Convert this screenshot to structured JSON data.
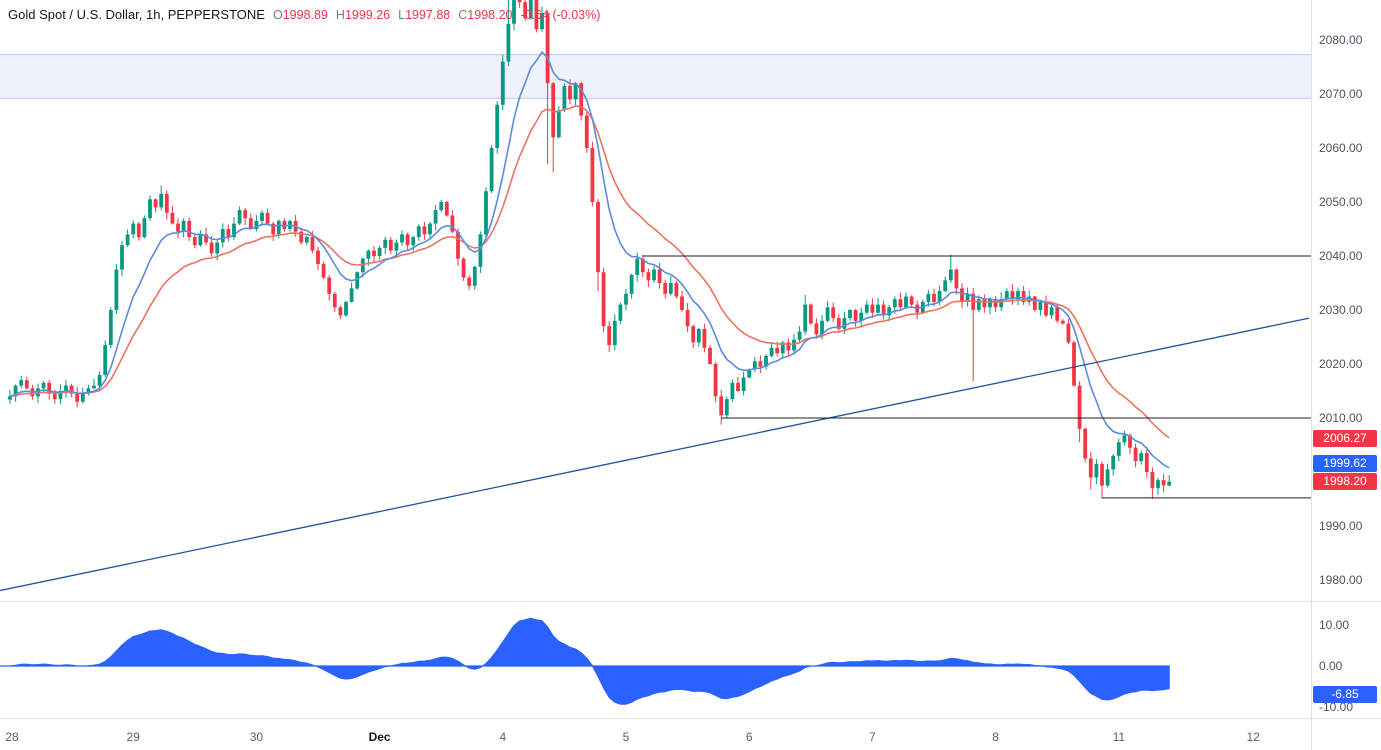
{
  "header": {
    "symbol_title": "Gold Spot / U.S. Dollar, 1h, PEPPERSTONE",
    "ohlc": {
      "o_label": "O",
      "o_value": "1998.89",
      "h_label": "H",
      "h_value": "1999.26",
      "l_label": "L",
      "l_value": "1997.88",
      "c_label": "C",
      "c_value": "1998.20",
      "change_text": "-0.64 (-0.03%)"
    }
  },
  "chart_data": {
    "type": "candlestick",
    "title": "Gold Spot / U.S. Dollar, 1h, PEPPERSTONE",
    "colors": {
      "up": "#089981",
      "down": "#f23645",
      "ma_fast": "#5a8cde",
      "ma_slow": "#ee7262",
      "indicator_fill": "#2962ff",
      "level_line": "#1b1f27",
      "trend_line": "#1e53a0",
      "zone_fill": "#edf2fc",
      "zone_border": "#b7c9ec"
    },
    "y_axis_main": {
      "ticks": [
        2080,
        2070,
        2060,
        2050,
        2040,
        2030,
        2020,
        2010,
        1990,
        1980
      ],
      "visible_range": [
        1976,
        2087.5
      ]
    },
    "y_axis_indicator": {
      "ticks": [
        10,
        0,
        -10
      ],
      "visible_range": [
        -13.5,
        14.5
      ]
    },
    "x_axis": {
      "labels": [
        {
          "text": "28",
          "index": 0
        },
        {
          "text": "29",
          "index": 22
        },
        {
          "text": "30",
          "index": 44
        },
        {
          "text": "Dec",
          "index": 66,
          "bold": true
        },
        {
          "text": "4",
          "index": 88
        },
        {
          "text": "5",
          "index": 110
        },
        {
          "text": "6",
          "index": 132
        },
        {
          "text": "7",
          "index": 154
        },
        {
          "text": "8",
          "index": 176
        },
        {
          "text": "11",
          "index": 198
        },
        {
          "text": "12",
          "index": 222
        }
      ]
    },
    "first_open": 2013.4,
    "closes": [
      2014.0,
      2016.0,
      2017.0,
      2015.5,
      2014.0,
      2015.5,
      2016.5,
      2014.5,
      2013.5,
      2015.0,
      2016.0,
      2014.5,
      2013.0,
      2014.5,
      2015.5,
      2016.0,
      2018.0,
      2023.5,
      2030.0,
      2037.5,
      2042.0,
      2044.0,
      2046.0,
      2043.5,
      2047.0,
      2050.5,
      2049.0,
      2051.5,
      2048.0,
      2046.0,
      2044.5,
      2046.5,
      2043.5,
      2042.0,
      2044.0,
      2042.5,
      2040.5,
      2042.5,
      2045.0,
      2043.5,
      2046.0,
      2048.5,
      2047.0,
      2045.0,
      2046.5,
      2048.0,
      2046.0,
      2044.0,
      2046.5,
      2045.0,
      2046.5,
      2044.5,
      2042.5,
      2043.5,
      2041.0,
      2038.5,
      2036.0,
      2033.0,
      2030.5,
      2029.0,
      2031.5,
      2034.0,
      2037.0,
      2039.5,
      2041.0,
      2040.0,
      2041.5,
      2043.0,
      2041.0,
      2042.5,
      2044.0,
      2042.0,
      2043.5,
      2045.5,
      2044.0,
      2046.0,
      2048.5,
      2050.0,
      2047.5,
      2044.5,
      2039.5,
      2036.0,
      2034.5,
      2038.0,
      2044.0,
      2052.0,
      2060.0,
      2068.0,
      2076.0,
      2083.0,
      2090.0,
      2087.0,
      2084.0,
      2087.5,
      2082.0,
      2085.0,
      2072.0,
      2062.0,
      2067.0,
      2071.5,
      2069.0,
      2072.0,
      2066.0,
      2060.0,
      2050.0,
      2037.0,
      2027.0,
      2023.5,
      2028.0,
      2031.0,
      2033.0,
      2036.5,
      2039.5,
      2037.0,
      2035.5,
      2037.5,
      2035.0,
      2033.0,
      2035.0,
      2032.5,
      2030.0,
      2027.0,
      2024.0,
      2026.5,
      2023.0,
      2020.0,
      2014.0,
      2010.5,
      2013.5,
      2016.5,
      2015.0,
      2017.5,
      2019.0,
      2020.5,
      2019.5,
      2021.5,
      2023.0,
      2022.0,
      2024.0,
      2022.5,
      2024.5,
      2026.0,
      2031.0,
      2027.5,
      2025.5,
      2028.0,
      2030.5,
      2028.5,
      2026.5,
      2028.5,
      2030.0,
      2028.0,
      2029.5,
      2031.0,
      2029.5,
      2031.0,
      2029.0,
      2030.5,
      2032.0,
      2030.5,
      2032.5,
      2031.0,
      2029.5,
      2031.5,
      2033.0,
      2031.5,
      2033.5,
      2035.5,
      2037.5,
      2034.0,
      2031.5,
      2033.0,
      2030.0,
      2032.0,
      2030.5,
      2032.0,
      2030.5,
      2032.0,
      2033.5,
      2032.0,
      2033.5,
      2031.5,
      2032.5,
      2030.0,
      2031.5,
      2029.0,
      2030.5,
      2028.0,
      2027.5,
      2024.0,
      2016.0,
      2008.0,
      2002.5,
      1999.0,
      2001.5,
      1997.5,
      2000.5,
      2003.0,
      2005.5,
      2006.8,
      2004.5,
      2002.0,
      2003.5,
      2000.0,
      1997.0,
      1998.5,
      1997.5,
      1998.2
    ],
    "wick_overrides": {
      "27": {
        "high": 2053
      },
      "89": {
        "high": 2094
      },
      "90": {
        "high": 2098
      },
      "91": {
        "high": 2096
      },
      "93": {
        "high": 2093
      },
      "96": {
        "low": 2057
      },
      "97": {
        "low": 2055.5
      },
      "105": {
        "low": 2033.5
      },
      "112": {
        "high": 2040.6
      },
      "127": {
        "low": 2008.8
      },
      "142": {
        "high": 2032.8
      },
      "168": {
        "high": 2040.3
      },
      "172": {
        "low": 2016.8
      },
      "191": {
        "low": 2005.5
      },
      "193": {
        "low": 1996.8
      },
      "195": {
        "low": 1995.1
      },
      "204": {
        "low": 1995.0
      }
    },
    "moving_averages": [
      {
        "name": "fast",
        "last_value": 1999.62,
        "color": "#2962ff"
      },
      {
        "name": "slow",
        "last_value": 2006.27,
        "color": "#f23645"
      }
    ],
    "indicator": {
      "type": "macd_area",
      "last_value": -6.85,
      "last_value_text": "-6.85"
    },
    "levels": [
      {
        "price": 2040.0,
        "from_index": 113
      },
      {
        "price": 2010.0,
        "from_index": 127
      },
      {
        "price": 1995.2,
        "from_index": 195
      }
    ],
    "trendline": {
      "from_index": -2,
      "from_price": 1978.0,
      "to_index": 232,
      "to_price": 2028.5
    },
    "zone": {
      "top_price": 2077.3,
      "bottom_price": 2069.2
    },
    "price_markers": [
      {
        "value": "2006.27",
        "price": 2006.27,
        "color": "#f23645"
      },
      {
        "value": "1999.62",
        "price": 1999.62,
        "color": "#2962ff"
      },
      {
        "value": "1998.20",
        "price": 1998.2,
        "color": "#f23645"
      }
    ]
  }
}
